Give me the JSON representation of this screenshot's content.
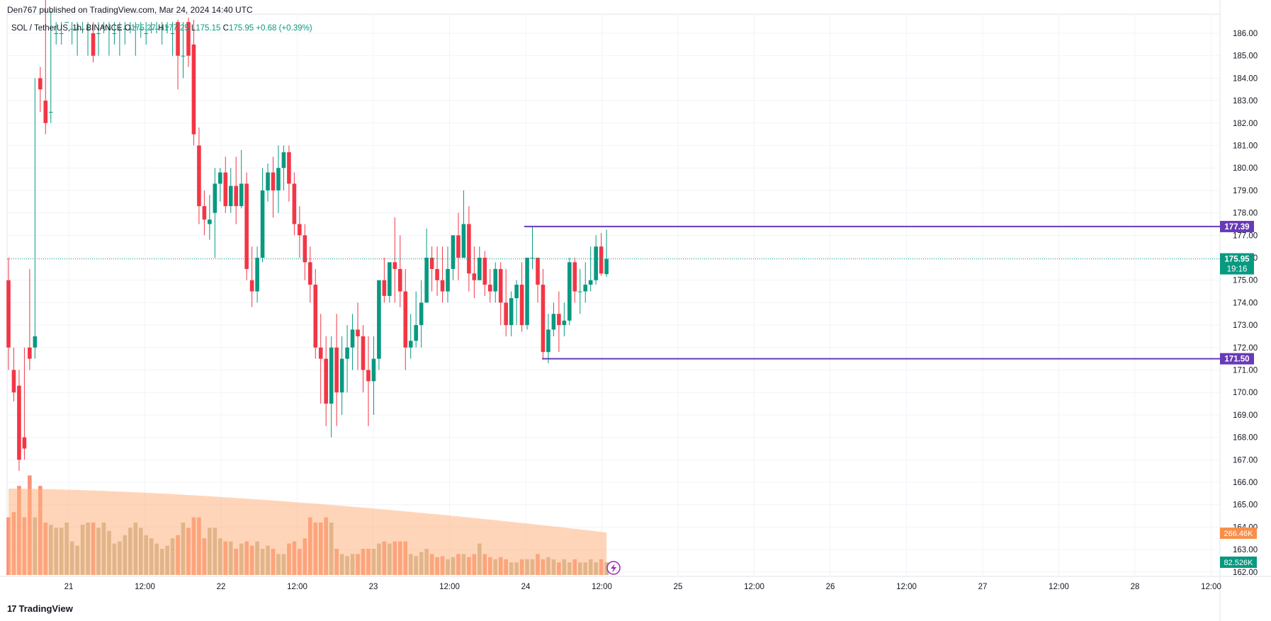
{
  "publisher": "Den767 published on TradingView.com, Mar 24, 2024 14:40 UTC",
  "legend": {
    "symbol": "SOL / TetherUS, 1h, BINANCE",
    "o_label": "O",
    "o": "175.27",
    "h_label": "H",
    "h": "177.25",
    "l_label": "L",
    "l": "175.15",
    "c_label": "C",
    "c": "175.95",
    "change": "+0.68 (+0.39%)"
  },
  "brand": "TradingView",
  "colors": {
    "up": "#089981",
    "down": "#f23645",
    "line": "#673ab7",
    "volume_ma": "#ffb380",
    "vol_up": "#b5b089",
    "vol_down": "#f7866a"
  },
  "chart_data": {
    "type": "candlestick",
    "symbol": "SOL / TetherUS",
    "interval": "1h",
    "exchange": "BINANCE",
    "ylim": [
      162,
      186.5
    ],
    "y_ticks": [
      "186.00",
      "185.00",
      "184.00",
      "183.00",
      "182.00",
      "181.00",
      "180.00",
      "179.00",
      "178.00",
      "177.00",
      "176.00",
      "175.00",
      "174.00",
      "173.00",
      "172.00",
      "171.00",
      "170.00",
      "169.00",
      "168.00",
      "167.00",
      "166.00",
      "165.00",
      "164.00",
      "163.00",
      "162.00"
    ],
    "x_ticks": [
      "21",
      "12:00",
      "22",
      "12:00",
      "23",
      "12:00",
      "24",
      "12:00",
      "25",
      "12:00",
      "26",
      "12:00",
      "27",
      "12:00",
      "28",
      "12:00"
    ],
    "candles": [
      [
        175.0,
        176.0,
        172.0,
        171.0
      ],
      [
        171.0,
        172.0,
        170.0,
        169.6
      ],
      [
        170.3,
        171.0,
        167.0,
        166.5
      ],
      [
        168.0,
        172.0,
        167.5,
        167.0
      ],
      [
        172.0,
        175.5,
        171.5,
        171.0
      ],
      [
        172.0,
        184.0,
        172.5,
        171.5
      ],
      [
        184.0,
        184.5,
        183.5,
        182.5
      ],
      [
        183.0,
        187.5,
        182.0,
        181.5
      ],
      [
        182.5,
        187.0,
        182.5,
        182.0
      ],
      [
        186.0,
        186.5,
        186.0,
        185.5
      ],
      [
        186.0,
        186.5,
        186.0,
        185.5
      ],
      [
        186.5,
        186.5,
        186.5,
        186.5
      ],
      [
        186.2,
        186.5,
        186.2,
        185.5
      ],
      [
        186.2,
        186.5,
        186.2,
        185.0
      ],
      [
        186.2,
        186.5,
        186.2,
        186.0
      ],
      [
        186.2,
        186.5,
        186.2,
        185.0
      ],
      [
        186.0,
        186.5,
        185.0,
        184.7
      ],
      [
        186.0,
        186.5,
        186.0,
        185.0
      ],
      [
        186.3,
        186.5,
        186.3,
        186.0
      ],
      [
        186.2,
        186.5,
        186.2,
        185.0
      ],
      [
        186.0,
        186.5,
        186.0,
        185.5
      ],
      [
        186.2,
        186.5,
        186.2,
        185.0
      ],
      [
        186.2,
        186.5,
        186.2,
        185.5
      ],
      [
        186.2,
        186.5,
        186.2,
        186.0
      ],
      [
        186.3,
        186.5,
        186.3,
        185.0
      ],
      [
        186.2,
        186.5,
        186.2,
        185.8
      ],
      [
        186.0,
        186.5,
        186.0,
        185.5
      ],
      [
        186.2,
        186.5,
        186.2,
        186.0
      ],
      [
        186.2,
        186.5,
        186.2,
        186.0
      ],
      [
        186.2,
        186.5,
        186.2,
        185.5
      ],
      [
        186.3,
        186.5,
        186.3,
        186.0
      ],
      [
        186.0,
        186.5,
        186.0,
        185.0
      ],
      [
        186.5,
        186.6,
        185.0,
        183.5
      ],
      [
        185.0,
        186.5,
        185.0,
        184.0
      ],
      [
        186.5,
        186.7,
        185.0,
        184.5
      ],
      [
        185.5,
        186.6,
        181.5,
        181.0
      ],
      [
        181.0,
        181.8,
        178.3,
        177.5
      ],
      [
        178.3,
        179.0,
        177.7,
        177.0
      ],
      [
        177.5,
        178.8,
        177.7,
        176.8
      ],
      [
        178.0,
        180.0,
        179.3,
        176.0
      ],
      [
        179.3,
        180.0,
        179.8,
        178.5
      ],
      [
        179.8,
        180.5,
        178.3,
        178.0
      ],
      [
        178.3,
        180.0,
        179.2,
        178.0
      ],
      [
        179.2,
        180.5,
        178.3,
        177.5
      ],
      [
        178.3,
        180.8,
        179.3,
        178.2
      ],
      [
        179.3,
        179.8,
        175.5,
        175.0
      ],
      [
        175.0,
        176.5,
        174.5,
        173.8
      ],
      [
        174.5,
        176.5,
        176.0,
        174.0
      ],
      [
        176.0,
        180.0,
        179.0,
        175.8
      ],
      [
        179.0,
        180.2,
        179.8,
        178.5
      ],
      [
        179.8,
        180.5,
        179.0,
        177.8
      ],
      [
        179.0,
        181.0,
        180.0,
        178.0
      ],
      [
        180.0,
        181.0,
        180.7,
        179.0
      ],
      [
        180.7,
        181.0,
        179.3,
        178.5
      ],
      [
        179.3,
        179.8,
        177.5,
        177.0
      ],
      [
        177.5,
        178.3,
        177.0,
        176.0
      ],
      [
        177.0,
        177.5,
        175.8,
        175.0
      ],
      [
        175.8,
        176.5,
        174.8,
        174.0
      ],
      [
        174.8,
        175.5,
        172.0,
        171.5
      ],
      [
        172.0,
        173.5,
        171.5,
        169.5
      ],
      [
        171.5,
        172.5,
        169.5,
        168.5
      ],
      [
        169.5,
        172.5,
        172.0,
        168.0
      ],
      [
        172.0,
        173.5,
        170.0,
        168.5
      ],
      [
        170.0,
        172.5,
        171.5,
        169.0
      ],
      [
        171.5,
        173.0,
        172.0,
        170.0
      ],
      [
        172.0,
        173.5,
        172.8,
        171.0
      ],
      [
        172.8,
        174.0,
        172.5,
        171.0
      ],
      [
        172.5,
        173.0,
        171.0,
        170.0
      ],
      [
        171.0,
        172.5,
        170.5,
        168.5
      ],
      [
        170.5,
        172.5,
        171.5,
        169.0
      ],
      [
        171.5,
        172.5,
        175.0,
        171.0
      ],
      [
        175.0,
        176.0,
        174.3,
        174.0
      ],
      [
        174.3,
        175.0,
        175.8,
        174.0
      ],
      [
        175.8,
        177.8,
        175.5,
        174.0
      ],
      [
        175.5,
        177.0,
        174.5,
        173.8
      ],
      [
        174.5,
        175.5,
        172.0,
        171.0
      ],
      [
        172.0,
        173.5,
        172.3,
        171.5
      ],
      [
        172.3,
        174.5,
        173.0,
        172.0
      ],
      [
        173.0,
        175.0,
        174.0,
        172.0
      ],
      [
        174.0,
        177.3,
        176.0,
        174.0
      ],
      [
        176.0,
        176.5,
        175.5,
        174.5
      ],
      [
        175.5,
        176.5,
        175.0,
        174.3
      ],
      [
        175.0,
        176.5,
        174.5,
        174.0
      ],
      [
        174.5,
        176.5,
        175.5,
        174.0
      ],
      [
        175.5,
        177.0,
        177.0,
        175.0
      ],
      [
        177.0,
        178.0,
        176.0,
        175.0
      ],
      [
        176.0,
        179.0,
        177.5,
        176.0
      ],
      [
        177.5,
        178.3,
        175.3,
        174.5
      ],
      [
        175.3,
        176.5,
        175.0,
        174.2
      ],
      [
        175.0,
        176.5,
        176.0,
        175.0
      ],
      [
        176.0,
        176.3,
        174.8,
        174.3
      ],
      [
        174.8,
        175.5,
        174.5,
        174.0
      ],
      [
        174.5,
        175.8,
        175.5,
        174.0
      ],
      [
        175.5,
        175.8,
        174.0,
        173.0
      ],
      [
        174.0,
        175.5,
        173.0,
        172.5
      ],
      [
        173.0,
        174.5,
        174.2,
        172.5
      ],
      [
        174.2,
        175.0,
        174.8,
        173.0
      ],
      [
        174.8,
        175.8,
        173.0,
        172.7
      ],
      [
        173.0,
        176.0,
        176.0,
        172.8
      ],
      [
        176.0,
        177.4,
        176.0,
        175.5
      ],
      [
        176.0,
        176.0,
        174.8,
        174.0
      ],
      [
        174.8,
        175.5,
        171.8,
        171.5
      ],
      [
        171.8,
        173.5,
        172.8,
        171.3
      ],
      [
        172.8,
        174.0,
        173.5,
        172.5
      ],
      [
        173.5,
        174.5,
        173.0,
        171.8
      ],
      [
        173.0,
        174.0,
        173.2,
        172.5
      ],
      [
        173.2,
        176.0,
        175.8,
        173.0
      ],
      [
        175.8,
        176.0,
        174.5,
        174.0
      ],
      [
        174.5,
        175.5,
        174.5,
        173.5
      ],
      [
        174.5,
        175.8,
        174.8,
        174.0
      ],
      [
        174.8,
        176.5,
        175.0,
        174.5
      ],
      [
        175.0,
        177.0,
        176.5,
        174.8
      ],
      [
        176.5,
        177.1,
        175.3,
        175.2
      ],
      [
        175.27,
        177.25,
        175.95,
        175.15
      ]
    ],
    "volume_rel": [
      0.55,
      0.6,
      0.85,
      0.55,
      0.95,
      0.55,
      0.85,
      0.5,
      0.48,
      0.45,
      0.45,
      0.5,
      0.32,
      0.28,
      0.48,
      0.5,
      0.5,
      0.45,
      0.5,
      0.42,
      0.3,
      0.32,
      0.38,
      0.45,
      0.5,
      0.45,
      0.38,
      0.35,
      0.3,
      0.25,
      0.28,
      0.35,
      0.38,
      0.5,
      0.45,
      0.55,
      0.55,
      0.35,
      0.45,
      0.45,
      0.35,
      0.32,
      0.32,
      0.25,
      0.3,
      0.32,
      0.28,
      0.32,
      0.25,
      0.28,
      0.25,
      0.2,
      0.2,
      0.3,
      0.32,
      0.25,
      0.35,
      0.55,
      0.5,
      0.5,
      0.55,
      0.5,
      0.25,
      0.2,
      0.18,
      0.2,
      0.2,
      0.25,
      0.25,
      0.25,
      0.3,
      0.32,
      0.3,
      0.32,
      0.32,
      0.32,
      0.2,
      0.18,
      0.22,
      0.25,
      0.2,
      0.17,
      0.18,
      0.15,
      0.17,
      0.2,
      0.2,
      0.17,
      0.2,
      0.3,
      0.2,
      0.17,
      0.15,
      0.17,
      0.15,
      0.12,
      0.12,
      0.15,
      0.15,
      0.15,
      0.2,
      0.15,
      0.17,
      0.15,
      0.12,
      0.15,
      0.12,
      0.15,
      0.12,
      0.12,
      0.15,
      0.12,
      0.15,
      0.12,
      0.15
    ],
    "volume_ma": "266.46K",
    "volume": "82.526K",
    "horizontal_lines": [
      {
        "price": 177.39,
        "label": "177.39"
      },
      {
        "price": 171.5,
        "label": "171.50"
      }
    ],
    "last_price": {
      "price": 175.95,
      "label": "175.95",
      "countdown": "19:16"
    },
    "grid": true
  }
}
